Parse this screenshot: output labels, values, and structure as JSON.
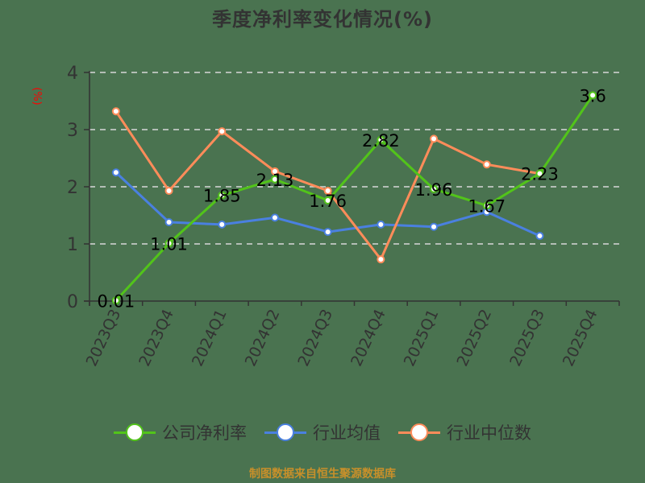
{
  "title": "季度净利率变化情况(%)",
  "unit_label": "(%)",
  "source_text": "制图数据来自恒生聚源数据库",
  "legend": [
    {
      "label": "公司净利率",
      "color": "#52c41a"
    },
    {
      "label": "行业均值",
      "color": "#4a80e0"
    },
    {
      "label": "行业中位数",
      "color": "#ff8c5a"
    }
  ],
  "chart_data": {
    "type": "line",
    "title": "季度净利率变化情况(%)",
    "xlabel": "",
    "ylabel": "(%)",
    "ylim": [
      0,
      4
    ],
    "yticks": [
      0,
      1,
      2,
      3,
      4
    ],
    "grid": true,
    "legend_position": "bottom",
    "categories": [
      "2023Q3",
      "2023Q4",
      "2024Q1",
      "2024Q2",
      "2024Q3",
      "2024Q4",
      "2025Q1",
      "2025Q2",
      "2025Q3",
      "2025Q4"
    ],
    "series": [
      {
        "name": "公司净利率",
        "color": "#52c41a",
        "values": [
          0.01,
          1.01,
          1.85,
          2.13,
          1.76,
          2.82,
          1.96,
          1.67,
          2.23,
          3.6
        ],
        "labels": [
          "0.01",
          "1.01",
          "1.85",
          "2.13",
          "1.76",
          "2.82",
          "1.96",
          "1.67",
          "2.23",
          "3.6"
        ]
      },
      {
        "name": "行业均值",
        "color": "#4a80e0",
        "values": [
          2.25,
          1.38,
          1.34,
          1.46,
          1.21,
          1.34,
          1.3,
          1.56,
          1.14,
          null
        ]
      },
      {
        "name": "行业中位数",
        "color": "#ff8c5a",
        "values": [
          3.32,
          1.93,
          2.97,
          2.27,
          1.93,
          0.73,
          2.84,
          2.39,
          2.23,
          null
        ]
      }
    ]
  }
}
